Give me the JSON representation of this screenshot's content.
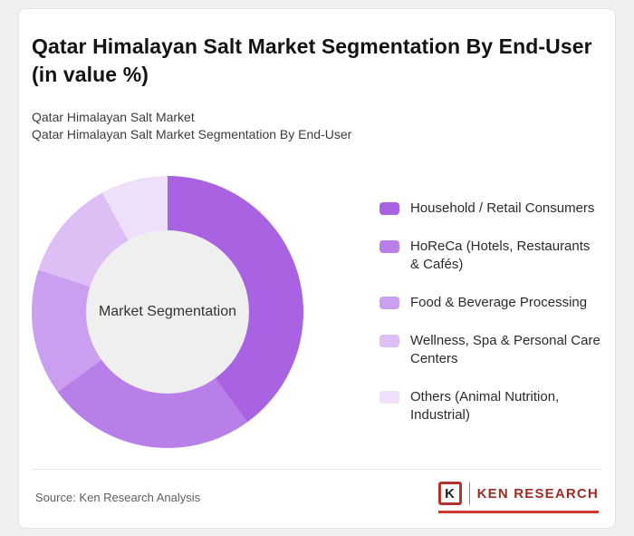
{
  "header": {
    "title": "Qatar Himalayan Salt Market Segmentation By End-User (in value %)",
    "subtitle_line1": "Qatar Himalayan Salt Market",
    "subtitle_line2": "Qatar Himalayan Salt Market Segmentation By End-User"
  },
  "chart_data": {
    "type": "pie",
    "donut": true,
    "title": "Qatar Himalayan Salt Market Segmentation By End-User (in value %)",
    "center_label": "Market Segmentation",
    "unit": "%",
    "categories": [
      "Household / Retail Consumers",
      "HoReCa (Hotels, Restaurants & Cafés)",
      "Food & Beverage Processing",
      "Wellness, Spa & Personal Care Centers",
      "Others (Animal Nutrition, Industrial)"
    ],
    "values": [
      40,
      25,
      15,
      12,
      8
    ],
    "colors": [
      "#a862e2",
      "#b97fe8",
      "#cb9ff0",
      "#ddbef5",
      "#eee0fb"
    ],
    "legend_position": "right",
    "start_angle": -90,
    "direction": "clockwise",
    "hole_color": "#efefef"
  },
  "footer": {
    "source": "Source: Ken Research Analysis",
    "logo": {
      "letter": "K",
      "brand": "KEN RESEARCH"
    }
  },
  "colors": {
    "accent_red": "#cf3a2e",
    "card_background": "#ffffff",
    "page_background": "#f0f0f1"
  }
}
